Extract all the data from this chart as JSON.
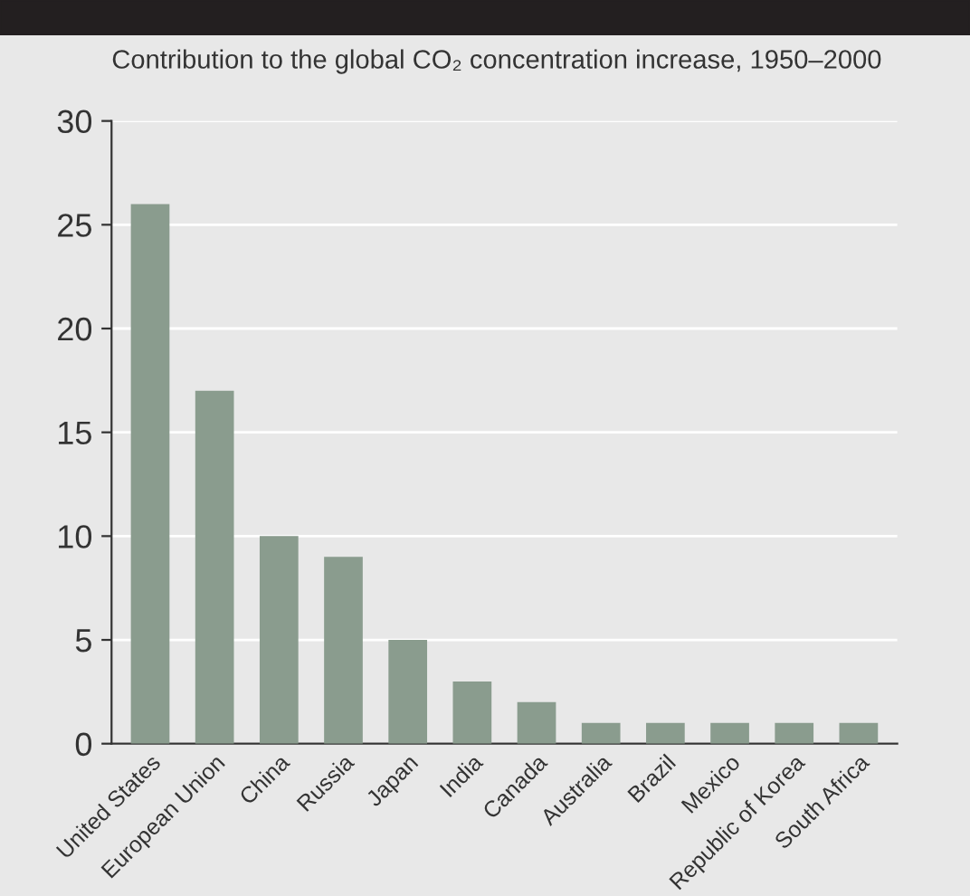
{
  "chart_data": {
    "type": "bar",
    "title": "Contribution to the global CO₂ concentration increase, 1950–2000",
    "categories": [
      "United States",
      "European Union",
      "China",
      "Russia",
      "Japan",
      "India",
      "Canada",
      "Australia",
      "Brazil",
      "Mexico",
      "Republic of Korea",
      "South Africa"
    ],
    "values": [
      26,
      17,
      10,
      9,
      5,
      3,
      2,
      1,
      1,
      1,
      1,
      1
    ],
    "color": "#8a9c8e",
    "ylim": [
      0,
      30
    ],
    "yticks": [
      0,
      5,
      10,
      15,
      20,
      25,
      30
    ],
    "grid": "y"
  }
}
